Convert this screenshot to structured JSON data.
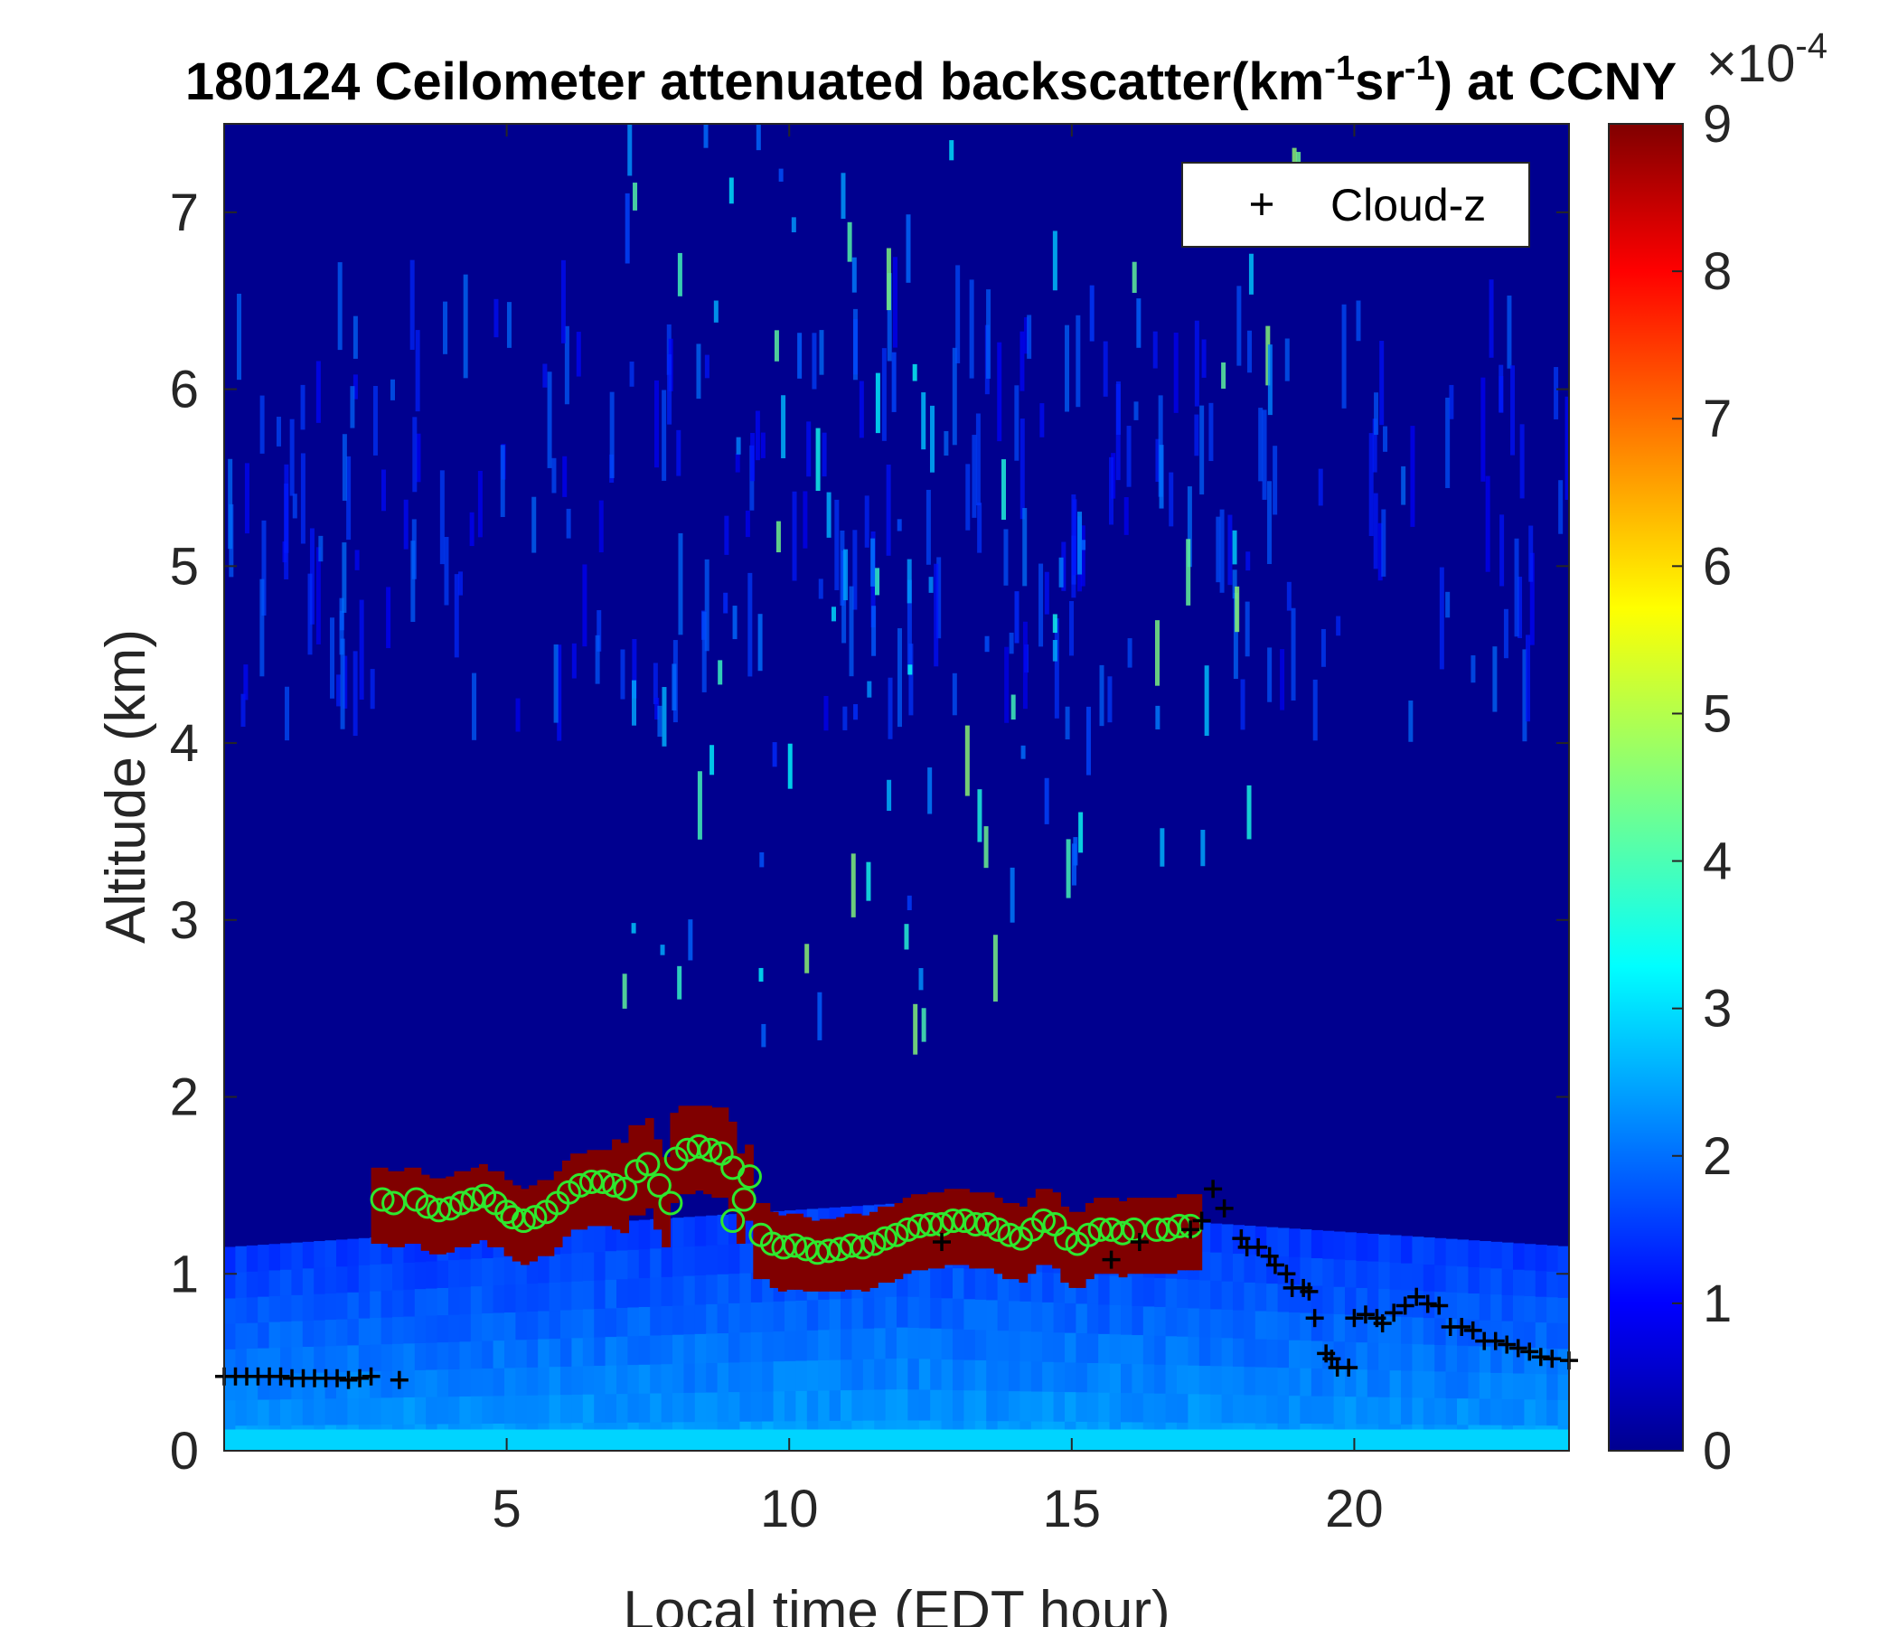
{
  "chart_data": {
    "type": "heatmap",
    "title_main": "180124 Ceilometer attenuated backscatter(km",
    "title_exp1": "-1",
    "title_mid": "sr",
    "title_exp2": "-1",
    "title_tail": ") at CCNY",
    "xlabel": "Local time (EDT hour)",
    "ylabel": "Altitude (km)",
    "xlim": [
      0,
      23.8
    ],
    "ylim": [
      0,
      7.5
    ],
    "xticks": [
      5,
      10,
      15,
      20
    ],
    "yticks": [
      0,
      1,
      2,
      3,
      4,
      5,
      6,
      7
    ],
    "colorbar": {
      "colormap": "jet",
      "range": [
        0,
        9
      ],
      "ticks": [
        0,
        1,
        2,
        3,
        4,
        5,
        6,
        7,
        8,
        9
      ],
      "multiplier_base": "×10",
      "multiplier_exp": "-4"
    },
    "legend": {
      "location": "top-right",
      "entries": [
        {
          "label": "Cloud-z",
          "marker": "+",
          "color": "#000000"
        }
      ]
    },
    "grid": false,
    "series": [
      {
        "name": "Cloud-z",
        "marker": "+",
        "color": "#000000",
        "points": [
          [
            0.0,
            0.42
          ],
          [
            0.2,
            0.42
          ],
          [
            0.4,
            0.42
          ],
          [
            0.6,
            0.42
          ],
          [
            0.8,
            0.42
          ],
          [
            1.0,
            0.42
          ],
          [
            1.2,
            0.41
          ],
          [
            1.4,
            0.41
          ],
          [
            1.6,
            0.41
          ],
          [
            1.8,
            0.41
          ],
          [
            2.0,
            0.41
          ],
          [
            2.2,
            0.4
          ],
          [
            2.4,
            0.41
          ],
          [
            2.6,
            0.42
          ],
          [
            3.1,
            0.4
          ],
          [
            12.7,
            1.18
          ],
          [
            15.7,
            1.08
          ],
          [
            16.2,
            1.18
          ],
          [
            17.1,
            1.25
          ],
          [
            17.3,
            1.3
          ],
          [
            17.5,
            1.48
          ],
          [
            17.7,
            1.37
          ],
          [
            18.0,
            1.2
          ],
          [
            18.1,
            1.15
          ],
          [
            18.3,
            1.15
          ],
          [
            18.5,
            1.1
          ],
          [
            18.6,
            1.05
          ],
          [
            18.8,
            1.0
          ],
          [
            18.9,
            0.92
          ],
          [
            19.1,
            0.92
          ],
          [
            19.2,
            0.9
          ],
          [
            19.3,
            0.75
          ],
          [
            19.5,
            0.55
          ],
          [
            19.6,
            0.52
          ],
          [
            19.7,
            0.47
          ],
          [
            19.9,
            0.47
          ],
          [
            20.0,
            0.75
          ],
          [
            20.2,
            0.77
          ],
          [
            20.4,
            0.75
          ],
          [
            20.5,
            0.72
          ],
          [
            20.7,
            0.78
          ],
          [
            20.9,
            0.82
          ],
          [
            21.1,
            0.87
          ],
          [
            21.3,
            0.83
          ],
          [
            21.5,
            0.82
          ],
          [
            21.7,
            0.7
          ],
          [
            21.9,
            0.7
          ],
          [
            22.1,
            0.68
          ],
          [
            22.3,
            0.62
          ],
          [
            22.5,
            0.62
          ],
          [
            22.7,
            0.6
          ],
          [
            22.9,
            0.58
          ],
          [
            23.1,
            0.56
          ],
          [
            23.3,
            0.53
          ],
          [
            23.5,
            0.52
          ],
          [
            23.8,
            0.51
          ]
        ]
      },
      {
        "marker": "o",
        "color": "#2ee82e",
        "points": [
          [
            2.8,
            1.42
          ],
          [
            3.0,
            1.4
          ],
          [
            3.4,
            1.42
          ],
          [
            3.6,
            1.38
          ],
          [
            3.8,
            1.36
          ],
          [
            4.0,
            1.37
          ],
          [
            4.2,
            1.4
          ],
          [
            4.4,
            1.42
          ],
          [
            4.6,
            1.44
          ],
          [
            4.8,
            1.4
          ],
          [
            5.0,
            1.35
          ],
          [
            5.1,
            1.32
          ],
          [
            5.3,
            1.3
          ],
          [
            5.5,
            1.32
          ],
          [
            5.7,
            1.35
          ],
          [
            5.9,
            1.4
          ],
          [
            6.1,
            1.46
          ],
          [
            6.3,
            1.5
          ],
          [
            6.5,
            1.52
          ],
          [
            6.7,
            1.52
          ],
          [
            6.9,
            1.5
          ],
          [
            7.1,
            1.48
          ],
          [
            7.3,
            1.58
          ],
          [
            7.5,
            1.62
          ],
          [
            7.7,
            1.5
          ],
          [
            7.9,
            1.4
          ],
          [
            8.0,
            1.65
          ],
          [
            8.2,
            1.7
          ],
          [
            8.4,
            1.72
          ],
          [
            8.6,
            1.7
          ],
          [
            8.8,
            1.68
          ],
          [
            9.0,
            1.6
          ],
          [
            9.0,
            1.3
          ],
          [
            9.2,
            1.42
          ],
          [
            9.3,
            1.55
          ],
          [
            9.5,
            1.22
          ],
          [
            9.7,
            1.17
          ],
          [
            9.9,
            1.15
          ],
          [
            10.1,
            1.16
          ],
          [
            10.3,
            1.14
          ],
          [
            10.5,
            1.12
          ],
          [
            10.7,
            1.13
          ],
          [
            10.9,
            1.14
          ],
          [
            11.1,
            1.16
          ],
          [
            11.3,
            1.15
          ],
          [
            11.5,
            1.17
          ],
          [
            11.7,
            1.2
          ],
          [
            11.9,
            1.22
          ],
          [
            12.1,
            1.25
          ],
          [
            12.3,
            1.27
          ],
          [
            12.5,
            1.28
          ],
          [
            12.7,
            1.28
          ],
          [
            12.9,
            1.3
          ],
          [
            13.1,
            1.3
          ],
          [
            13.3,
            1.28
          ],
          [
            13.5,
            1.28
          ],
          [
            13.7,
            1.25
          ],
          [
            13.9,
            1.22
          ],
          [
            14.1,
            1.2
          ],
          [
            14.3,
            1.25
          ],
          [
            14.5,
            1.3
          ],
          [
            14.7,
            1.28
          ],
          [
            14.9,
            1.2
          ],
          [
            15.1,
            1.17
          ],
          [
            15.3,
            1.22
          ],
          [
            15.5,
            1.25
          ],
          [
            15.7,
            1.25
          ],
          [
            15.9,
            1.23
          ],
          [
            16.1,
            1.25
          ],
          [
            16.5,
            1.25
          ],
          [
            16.7,
            1.25
          ],
          [
            16.9,
            1.27
          ],
          [
            17.1,
            1.27
          ]
        ]
      }
    ],
    "heatmap_features": {
      "aerosol_layer": {
        "x_range": [
          0,
          23.8
        ],
        "top_km": 1.4,
        "values": [
          1.5,
          2.5
        ]
      },
      "surface_band": {
        "y_range": [
          0,
          0.12
        ],
        "value": 3.0
      },
      "cloud_layer": {
        "x_range": [
          2.6,
          17.3
        ],
        "base_km": [
          0.9,
          1.15
        ],
        "top_km": [
          1.3,
          1.95
        ],
        "value": 9.0
      },
      "upper_layer": {
        "y_range": [
          4.0,
          6.3
        ],
        "value": 1.0
      }
    }
  }
}
